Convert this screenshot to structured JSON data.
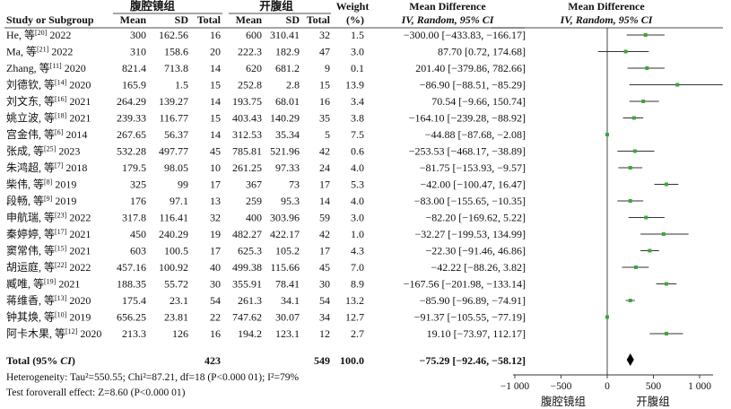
{
  "header": {
    "group1_title": "腹腔镜组",
    "group2_title": "开腹组",
    "study_col": "Study or Subgroup",
    "mean": "Mean",
    "sd": "SD",
    "total": "Total",
    "weight_line1": "Weight",
    "weight_line2": "(%)",
    "md_line1": "Mean Difference",
    "md_line2": "IV, Random, 95% CI",
    "plot_line1": "Mean Difference",
    "plot_line2": "IV, Random, 95% CI"
  },
  "summary": {
    "label": "Total (95% ",
    "label_ci": "CI",
    "label_close": ")",
    "total1": "423",
    "total2": "549",
    "weight": "100.0",
    "md_text": "−75.29 [−92.46, −58.12]"
  },
  "footer": {
    "heterogeneity": "Heterogeneity: Tau²=550.55; Chi²=87.21, df=18 (P<0.000 01); I²=79%",
    "overall_effect": "Test foroverall effect: Z=8.60 (P<0.000 01)"
  },
  "axis_labels": {
    "left": "腹腔镜组",
    "right": "开腹组"
  },
  "colors": {
    "square": "#3aa83a",
    "line": "#333333",
    "diamond": "#000000"
  },
  "chart_data": {
    "type": "forest",
    "xlim": [
      -1000,
      1000
    ],
    "xticks": [
      -1000,
      -500,
      0,
      500,
      1000
    ],
    "xtick_labels": [
      "−1 000",
      "−500",
      "0",
      "500",
      "1 000"
    ],
    "studies": [
      {
        "name": "He, 等",
        "ref": "[20]",
        "year": "2022",
        "m1": "300",
        "sd1": "162.56",
        "n1": "16",
        "m2": "600",
        "sd2": "310.41",
        "n2": "32",
        "weight": "1.5",
        "md_text": "−300.00 [−433.83, −166.17]",
        "est": 415,
        "lo": 210,
        "hi": 620
      },
      {
        "name": "Ma, 等",
        "ref": "[21]",
        "year": "2022",
        "m1": "310",
        "sd1": "158.6",
        "n1": "20",
        "m2": "222.3",
        "sd2": "182.9",
        "n2": "47",
        "weight": "3.0",
        "md_text": "87.70 [0.72, 174.68]",
        "est": 200,
        "lo": -100,
        "hi": 450
      },
      {
        "name": "Zhang, 等",
        "ref": "[11]",
        "year": "2020",
        "m1": "821.4",
        "sd1": "713.8",
        "n1": "14",
        "m2": "620",
        "sd2": "681.2",
        "n2": "9",
        "weight": "0.1",
        "md_text": "201.40 [−379.86, 782.66]",
        "est": 430,
        "lo": 220,
        "hi": 620
      },
      {
        "name": "刘德钦, 等",
        "ref": "[14]",
        "year": "2020",
        "m1": "165.9",
        "sd1": "1.5",
        "n1": "15",
        "m2": "252.8",
        "sd2": "2.8",
        "n2": "15",
        "weight": "13.9",
        "md_text": "−86.90 [−88.51, −85.29]",
        "est": 760,
        "lo": 240,
        "hi": 1250
      },
      {
        "name": "刘文东, 等",
        "ref": "[16]",
        "year": "2021",
        "m1": "264.29",
        "sd1": "139.27",
        "n1": "14",
        "m2": "193.75",
        "sd2": "68.01",
        "n2": "16",
        "weight": "3.4",
        "md_text": "70.54 [−9.66, 150.74]",
        "est": 390,
        "lo": 240,
        "hi": 560
      },
      {
        "name": "姚立波, 等",
        "ref": "[18]",
        "year": "2021",
        "m1": "239.33",
        "sd1": "116.77",
        "n1": "15",
        "m2": "403.43",
        "sd2": "140.29",
        "n2": "35",
        "weight": "3.8",
        "md_text": "−164.10 [−239.28, −88.92]",
        "est": 290,
        "lo": 170,
        "hi": 390
      },
      {
        "name": "宫金伟, 等",
        "ref": "[6]",
        "year": "2014",
        "m1": "267.65",
        "sd1": "56.37",
        "n1": "14",
        "m2": "312.53",
        "sd2": "35.34",
        "n2": "5",
        "weight": "7.5",
        "md_text": "−44.88 [−87.68, −2.08]",
        "est": 0,
        "lo": null,
        "hi": null
      },
      {
        "name": "张成, 等",
        "ref": "[25]",
        "year": "2023",
        "m1": "532.28",
        "sd1": "497.77",
        "n1": "45",
        "m2": "785.81",
        "sd2": "521.96",
        "n2": "42",
        "weight": "0.6",
        "md_text": "−253.53 [−468.17, −38.89]",
        "est": 300,
        "lo": 110,
        "hi": 510
      },
      {
        "name": "朱鸿超, 等",
        "ref": "[7]",
        "year": "2018",
        "m1": "179.5",
        "sd1": "98.05",
        "n1": "10",
        "m2": "261.25",
        "sd2": "97.33",
        "n2": "24",
        "weight": "4.0",
        "md_text": "−81.75 [−153.93, −9.57]",
        "est": 250,
        "lo": 120,
        "hi": 380
      },
      {
        "name": "柴伟, 等",
        "ref": "[8]",
        "year": "2019",
        "m1": "325",
        "sd1": "99",
        "n1": "17",
        "m2": "367",
        "sd2": "73",
        "n2": "17",
        "weight": "5.3",
        "md_text": "−42.00 [−100.47, 16.47]",
        "est": 640,
        "lo": 510,
        "hi": 770
      },
      {
        "name": "段畅, 等",
        "ref": "[9]",
        "year": "2019",
        "m1": "176",
        "sd1": "97.1",
        "n1": "13",
        "m2": "259",
        "sd2": "95.3",
        "n2": "14",
        "weight": "4.0",
        "md_text": "−83.00 [−155.65, −10.35]",
        "est": 250,
        "lo": 110,
        "hi": 390
      },
      {
        "name": "申航瑞, 等",
        "ref": "[23]",
        "year": "2022",
        "m1": "317.8",
        "sd1": "116.41",
        "n1": "32",
        "m2": "400",
        "sd2": "303.96",
        "n2": "59",
        "weight": "3.0",
        "md_text": "−82.20 [−169.62, 5.22]",
        "est": 420,
        "lo": 230,
        "hi": 620
      },
      {
        "name": "秦婷婷, 等",
        "ref": "[17]",
        "year": "2021",
        "m1": "450",
        "sd1": "240.29",
        "n1": "19",
        "m2": "482.27",
        "sd2": "422.17",
        "n2": "42",
        "weight": "1.0",
        "md_text": "−32.27 [−199.53, 134.99]",
        "est": 610,
        "lo": 360,
        "hi": 880
      },
      {
        "name": "窦常伟, 等",
        "ref": "[15]",
        "year": "2021",
        "m1": "603",
        "sd1": "100.5",
        "n1": "17",
        "m2": "625.3",
        "sd2": "105.2",
        "n2": "17",
        "weight": "4.3",
        "md_text": "−22.30 [−91.46, 46.86]",
        "est": 460,
        "lo": 360,
        "hi": 560
      },
      {
        "name": "胡运庭, 等",
        "ref": "[22]",
        "year": "2022",
        "m1": "457.16",
        "sd1": "100.92",
        "n1": "40",
        "m2": "499.38",
        "sd2": "115.66",
        "n2": "45",
        "weight": "7.0",
        "md_text": "−42.22 [−88.26, 3.82]",
        "est": 310,
        "lo": 160,
        "hi": 450
      },
      {
        "name": "臧唯, 等",
        "ref": "[19]",
        "year": "2021",
        "m1": "188.35",
        "sd1": "55.72",
        "n1": "30",
        "m2": "355.91",
        "sd2": "78.41",
        "n2": "30",
        "weight": "8.9",
        "md_text": "−167.56 [−201.98, −133.14]",
        "est": 640,
        "lo": 530,
        "hi": 750
      },
      {
        "name": "蒋维香, 等",
        "ref": "[13]",
        "year": "2020",
        "m1": "175.4",
        "sd1": "23.1",
        "n1": "54",
        "m2": "261.3",
        "sd2": "34.1",
        "n2": "54",
        "weight": "13.2",
        "md_text": "−85.90 [−96.89, −74.91]",
        "est": 250,
        "lo": 200,
        "hi": 300
      },
      {
        "name": "钟其焕, 等",
        "ref": "[10]",
        "year": "2019",
        "m1": "656.25",
        "sd1": "23.81",
        "n1": "22",
        "m2": "747.62",
        "sd2": "30.07",
        "n2": "34",
        "weight": "12.7",
        "md_text": "−91.37 [−105.55, −77.19]",
        "est": 0,
        "lo": null,
        "hi": null
      },
      {
        "name": "阿卡木果, 等",
        "ref": "[12]",
        "year": "2020",
        "m1": "213.3",
        "sd1": "126",
        "n1": "16",
        "m2": "194.2",
        "sd2": "123.1",
        "n2": "12",
        "weight": "2.7",
        "md_text": "19.10 [−73.97, 112.17]",
        "est": 640,
        "lo": 460,
        "hi": 820
      }
    ],
    "overall": {
      "est": 250
    }
  }
}
